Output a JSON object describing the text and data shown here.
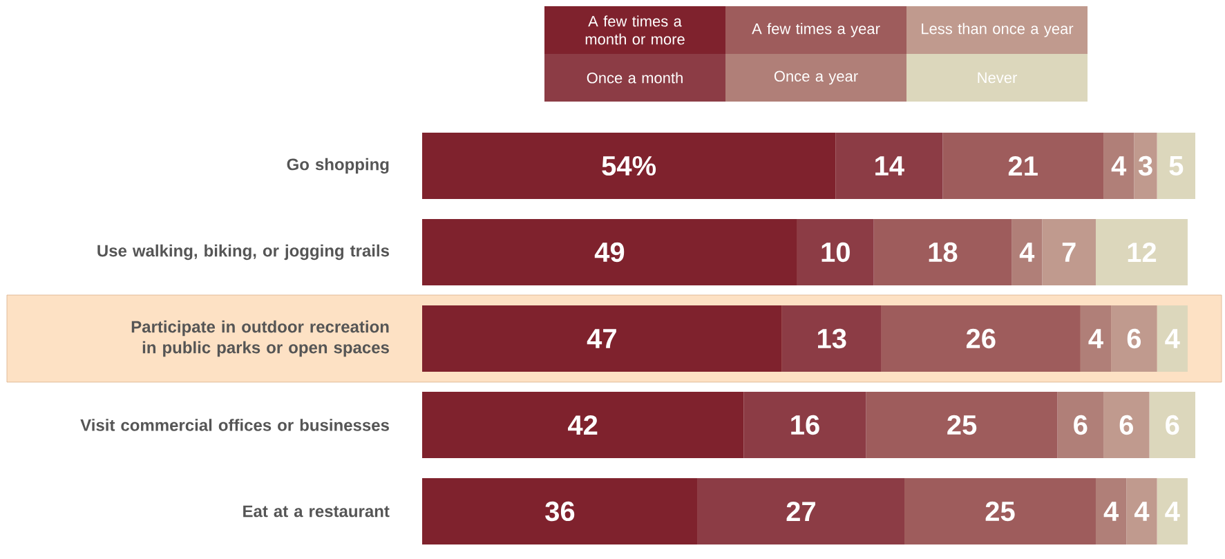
{
  "chart_data": {
    "type": "bar",
    "orientation": "horizontal",
    "stacked": true,
    "legend": "top",
    "categories": [
      "Go shopping",
      "Use walking, biking, or jogging trails",
      "Participate in outdoor recreation in public parks or open spaces",
      "Visit commercial offices or businesses",
      "Eat at a restaurant"
    ],
    "series": [
      {
        "name": "A few times a month or more",
        "color": "#7f222d",
        "values": [
          54,
          49,
          47,
          42,
          36
        ],
        "value_labels": [
          "54%",
          "49",
          "47",
          "42",
          "36"
        ]
      },
      {
        "name": "Once a month",
        "color": "#8c3c45",
        "values": [
          14,
          10,
          13,
          16,
          27
        ],
        "value_labels": [
          "14",
          "10",
          "13",
          "16",
          "27"
        ]
      },
      {
        "name": "A few times a year",
        "color": "#9e5c5c",
        "values": [
          21,
          18,
          26,
          25,
          25
        ],
        "value_labels": [
          "21",
          "18",
          "26",
          "25",
          "25"
        ]
      },
      {
        "name": "Once a year",
        "color": "#b07f78",
        "values": [
          4,
          4,
          4,
          6,
          4
        ],
        "value_labels": [
          "4",
          "4",
          "4",
          "6",
          "4"
        ]
      },
      {
        "name": "Less than once a year",
        "color": "#c09a8e",
        "values": [
          3,
          7,
          6,
          6,
          4
        ],
        "value_labels": [
          "3",
          "7",
          "6",
          "6",
          "4"
        ]
      },
      {
        "name": "Never",
        "color": "#dcd7bc",
        "values": [
          5,
          12,
          4,
          6,
          4
        ],
        "value_labels": [
          "5",
          "12",
          "4",
          "6",
          "4"
        ]
      }
    ]
  }
}
